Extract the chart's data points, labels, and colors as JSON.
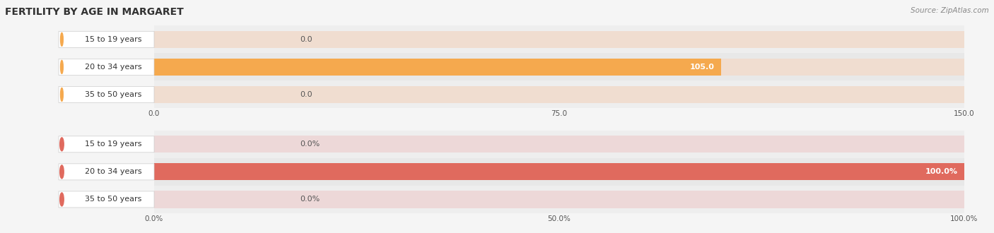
{
  "title": "FERTILITY BY AGE IN MARGARET",
  "source": "Source: ZipAtlas.com",
  "top_chart": {
    "categories": [
      "15 to 19 years",
      "20 to 34 years",
      "35 to 50 years"
    ],
    "values": [
      0.0,
      105.0,
      0.0
    ],
    "xlim": [
      0,
      150
    ],
    "xticks": [
      0.0,
      75.0,
      150.0
    ],
    "xtick_labels": [
      "0.0",
      "75.0",
      "150.0"
    ],
    "bar_color": "#F5A94E",
    "bar_bg_color": "#F0DDD0",
    "label_bg_color": "#F5CBA0",
    "label_circle_color": "#F5A94E"
  },
  "bottom_chart": {
    "categories": [
      "15 to 19 years",
      "20 to 34 years",
      "35 to 50 years"
    ],
    "values": [
      0.0,
      100.0,
      0.0
    ],
    "xlim": [
      0,
      100
    ],
    "xticks": [
      0.0,
      50.0,
      100.0
    ],
    "xtick_labels": [
      "0.0%",
      "50.0%",
      "100.0%"
    ],
    "bar_color": "#E06A5E",
    "bar_bg_color": "#EDD8D8",
    "label_bg_color": "#EFAAAA",
    "label_circle_color": "#E06A5E"
  },
  "fig_bg_color": "#f5f5f5",
  "row_bg_color": "#ebebeb",
  "title_fontsize": 10,
  "label_fontsize": 8,
  "tick_fontsize": 7.5,
  "source_fontsize": 7.5
}
